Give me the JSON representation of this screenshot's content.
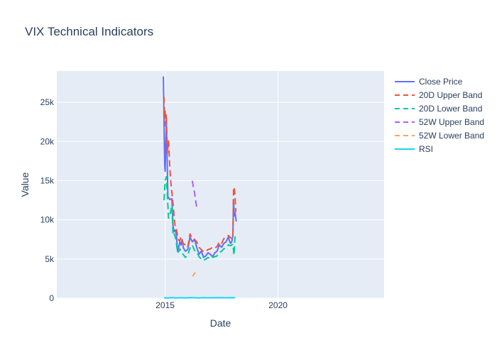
{
  "chart_data": {
    "type": "line",
    "title": "VIX Technical Indicators",
    "xlabel": "Date",
    "ylabel": "Value",
    "xlim": [
      2010.2,
      2024.7
    ],
    "ylim": [
      0,
      29000
    ],
    "x_ticks": [
      2015,
      2020
    ],
    "y_ticks": [
      {
        "v": 0,
        "label": "0"
      },
      {
        "v": 5000,
        "label": "5k"
      },
      {
        "v": 10000,
        "label": "10k"
      },
      {
        "v": 15000,
        "label": "15k"
      },
      {
        "v": 20000,
        "label": "20k"
      },
      {
        "v": 25000,
        "label": "25k"
      }
    ],
    "grid": true,
    "legend_position": "top-right",
    "series": [
      {
        "name": "Close Price",
        "color": "#636efa",
        "dash": "solid",
        "x": [
          2014.92,
          2014.94,
          2014.96,
          2014.98,
          2015.0,
          2015.02,
          2015.05,
          2015.08,
          2015.12,
          2015.2,
          2015.3,
          2015.35,
          2015.4,
          2015.45,
          2015.5,
          2015.55,
          2015.6,
          2015.65,
          2015.7,
          2015.75,
          2015.8,
          2015.85,
          2015.9,
          2016.0,
          2016.1,
          2016.2,
          2016.3,
          2016.4,
          2016.5,
          2016.6,
          2016.7,
          2016.8,
          2016.9,
          2017.0,
          2017.1,
          2017.2,
          2017.3,
          2017.4,
          2017.5,
          2017.6,
          2017.7,
          2017.8,
          2017.85,
          2017.9,
          2017.95,
          2018.0,
          2018.03,
          2018.06,
          2018.1,
          2018.13,
          2018.15
        ],
        "y": [
          28300,
          25000,
          20500,
          17000,
          16200,
          18500,
          22800,
          19000,
          13000,
          12600,
          12700,
          9200,
          8500,
          8700,
          8000,
          6000,
          6500,
          7200,
          6800,
          7500,
          6500,
          6200,
          6000,
          6200,
          7800,
          7200,
          7500,
          6500,
          5600,
          6000,
          5200,
          5400,
          5800,
          5600,
          5300,
          5800,
          6000,
          6800,
          6500,
          7000,
          7200,
          7800,
          7300,
          7000,
          7200,
          8000,
          12600,
          10500,
          10900,
          10200,
          9800
        ]
      },
      {
        "name": "20D Upper Band",
        "color": "#ef553b",
        "dash": "dash",
        "x": [
          2014.95,
          2014.98,
          2015.0,
          2015.02,
          2015.05,
          2015.1,
          2015.15,
          2015.2,
          2015.25,
          2015.3,
          2015.35,
          2015.4,
          2015.45,
          2015.5,
          2015.55,
          2015.6,
          2015.65,
          2015.7,
          2015.8,
          2015.9,
          2016.0,
          2016.1,
          2016.2,
          2016.3,
          2016.4,
          2016.5,
          2016.6,
          2016.7,
          2016.8,
          2016.9,
          2017.0,
          2017.1,
          2017.2,
          2017.3,
          2017.4,
          2017.5,
          2017.6,
          2017.7,
          2017.8,
          2017.9,
          2018.0,
          2018.03,
          2018.06,
          2018.1,
          2018.13
        ],
        "y": [
          25700,
          23000,
          24000,
          22000,
          23500,
          18500,
          20200,
          17000,
          14800,
          13500,
          12000,
          10300,
          9000,
          8800,
          8000,
          7400,
          7300,
          7800,
          7000,
          6800,
          6500,
          8200,
          7600,
          7500,
          7200,
          6500,
          6200,
          5900,
          6000,
          6200,
          6300,
          6500,
          6400,
          6600,
          7200,
          7000,
          7600,
          7800,
          8000,
          7700,
          7600,
          13800,
          14200,
          12900,
          11000
        ]
      },
      {
        "name": "20D Lower Band",
        "color": "#00cc96",
        "dash": "dash",
        "x": [
          2014.95,
          2014.98,
          2015.0,
          2015.05,
          2015.1,
          2015.15,
          2015.2,
          2015.3,
          2015.35,
          2015.4,
          2015.45,
          2015.5,
          2015.55,
          2015.6,
          2015.65,
          2015.7,
          2015.8,
          2015.9,
          2016.0,
          2016.1,
          2016.2,
          2016.3,
          2016.4,
          2016.5,
          2016.6,
          2016.7,
          2016.8,
          2016.9,
          2017.0,
          2017.1,
          2017.2,
          2017.3,
          2017.4,
          2017.5,
          2017.6,
          2017.7,
          2017.8,
          2017.9,
          2018.0,
          2018.05,
          2018.1
        ],
        "y": [
          12500,
          14000,
          15000,
          15500,
          13000,
          10200,
          10500,
          11800,
          8000,
          8200,
          7800,
          7000,
          5800,
          6000,
          6300,
          5900,
          5600,
          5200,
          5500,
          6400,
          6800,
          6100,
          5900,
          5300,
          5000,
          4800,
          5000,
          5200,
          5000,
          5200,
          5300,
          5400,
          5800,
          6000,
          6300,
          6500,
          6800,
          6700,
          6900,
          5500,
          8200
        ]
      },
      {
        "name": "52W Upper Band",
        "color": "#ab63fa",
        "dash": "dash",
        "x": [
          2016.2,
          2016.25,
          2016.3,
          2016.35,
          2016.4
        ],
        "y": [
          15000,
          14200,
          13500,
          12500,
          11500
        ]
      },
      {
        "name": "52W Lower Band",
        "color": "#ffa15a",
        "dash": "dash",
        "x": [
          2016.22,
          2016.28,
          2016.34
        ],
        "y": [
          2800,
          3100,
          3300
        ]
      },
      {
        "name": "RSI",
        "color": "#19d3f3",
        "dash": "solid",
        "x": [
          2014.95,
          2015.1,
          2015.3,
          2015.5,
          2015.7,
          2015.9,
          2016.1,
          2016.3,
          2016.5,
          2016.7,
          2016.9,
          2017.1,
          2017.3,
          2017.5,
          2017.7,
          2017.9,
          2018.1
        ],
        "y": [
          45,
          30,
          60,
          40,
          55,
          35,
          65,
          50,
          40,
          60,
          45,
          55,
          50,
          60,
          45,
          70,
          55
        ]
      }
    ]
  }
}
